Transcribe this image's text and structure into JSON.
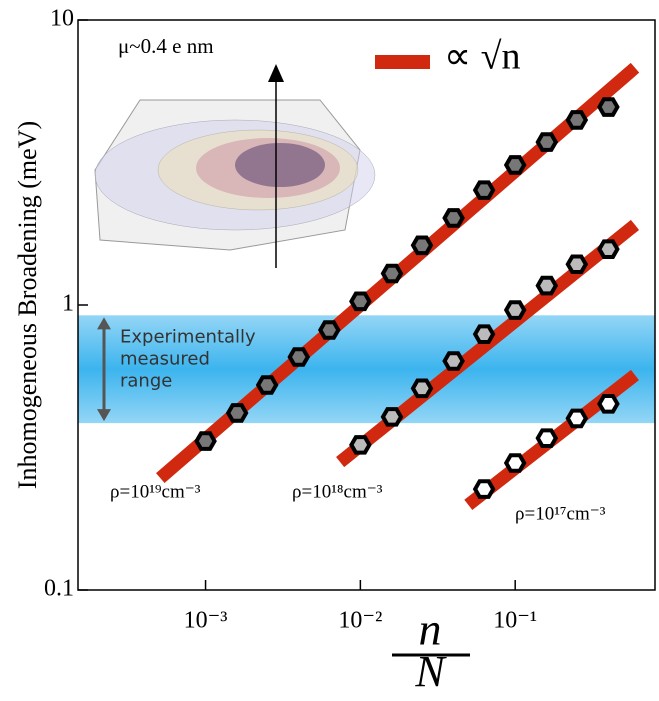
{
  "chart_data": {
    "type": "scatter",
    "y_label": "Inhomogeneous Broadening (meV)",
    "x_label": {
      "numerator": "n",
      "denominator": "N"
    },
    "log_x": true,
    "log_y": true,
    "xlim": [
      0.00015,
      0.8
    ],
    "ylim": [
      0.1,
      10
    ],
    "xticks": [
      {
        "value": 0.001,
        "label": "10⁻³"
      },
      {
        "value": 0.01,
        "label": "10⁻²"
      },
      {
        "value": 0.1,
        "label": "10⁻¹"
      }
    ],
    "yticks": [
      0.1,
      1,
      10
    ],
    "band": {
      "ylim": [
        0.385,
        0.92
      ],
      "color": "#3cb4ee",
      "label": "Experimentally measured range"
    },
    "inset_label": "μ~0.4 e nm",
    "legend": {
      "name": "∝ √n",
      "color": "#d0290f"
    },
    "fits": [
      {
        "x": [
          0.00051,
          0.594
        ],
        "y": [
          0.247,
          6.8
        ]
      },
      {
        "x": [
          0.0074,
          0.594
        ],
        "y": [
          0.281,
          1.91
        ]
      },
      {
        "x": [
          0.0498,
          0.594
        ],
        "y": [
          0.199,
          0.568
        ]
      }
    ],
    "series": [
      {
        "name": "ρ=10¹⁹cm⁻³",
        "color": "#777777",
        "x": [
          0.001,
          0.0016,
          0.0025,
          0.004,
          0.0063,
          0.01,
          0.016,
          0.025,
          0.04,
          0.063,
          0.1,
          0.16,
          0.25,
          0.4
        ],
        "values": [
          0.333,
          0.418,
          0.524,
          0.657,
          0.817,
          1.03,
          1.29,
          1.62,
          2.02,
          2.53,
          3.1,
          3.73,
          4.46,
          4.95
        ]
      },
      {
        "name": "ρ=10¹⁸cm⁻³",
        "color": "#bbbbbb",
        "x": [
          0.01,
          0.016,
          0.025,
          0.04,
          0.063,
          0.1,
          0.16,
          0.25,
          0.4
        ],
        "values": [
          0.323,
          0.405,
          0.51,
          0.636,
          0.79,
          0.96,
          1.17,
          1.39,
          1.57
        ]
      },
      {
        "name": "ρ=10¹⁷cm⁻³",
        "color": "#ffffff",
        "x": [
          0.063,
          0.1,
          0.16,
          0.25,
          0.4
        ],
        "values": [
          0.226,
          0.279,
          0.341,
          0.4,
          0.45
        ]
      }
    ]
  }
}
